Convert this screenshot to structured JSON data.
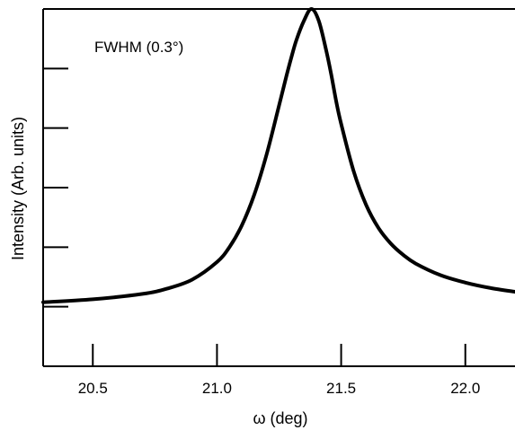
{
  "chart_data": {
    "type": "line",
    "title": "",
    "xlabel": "ω (deg)",
    "ylabel": "Intensity (Arb. units)",
    "annotation": "FWHM (0.3°)",
    "xlim": [
      20.3,
      22.2
    ],
    "ylim": [
      -0.2,
      1.0
    ],
    "x_ticks": [
      20.5,
      21.0,
      21.5,
      22.0
    ],
    "x_tick_labels": [
      "20.5",
      "21.0",
      "21.5",
      "22.0"
    ],
    "y_ticks": [
      0.0,
      0.2,
      0.4,
      0.6,
      0.8
    ],
    "y_tick_labels": [
      "",
      "",
      "",
      "",
      ""
    ],
    "grid": false,
    "series": [
      {
        "name": "",
        "color": "#000000",
        "peak_center": 21.38,
        "fwhm": 0.3,
        "x": [
          20.3,
          20.5,
          20.7,
          20.8,
          20.9,
          21.0,
          21.05,
          21.1,
          21.15,
          21.2,
          21.25,
          21.28,
          21.3,
          21.32,
          21.35,
          21.38,
          21.41,
          21.44,
          21.46,
          21.48,
          21.5,
          21.55,
          21.6,
          21.65,
          21.7,
          21.75,
          21.8,
          21.9,
          22.0,
          22.1,
          22.2
        ],
        "y": [
          0.015,
          0.025,
          0.043,
          0.061,
          0.091,
          0.15,
          0.2,
          0.273,
          0.376,
          0.512,
          0.676,
          0.776,
          0.839,
          0.896,
          0.96,
          1.0,
          0.96,
          0.86,
          0.78,
          0.69,
          0.614,
          0.456,
          0.343,
          0.265,
          0.212,
          0.174,
          0.145,
          0.106,
          0.081,
          0.063,
          0.05
        ]
      }
    ]
  }
}
